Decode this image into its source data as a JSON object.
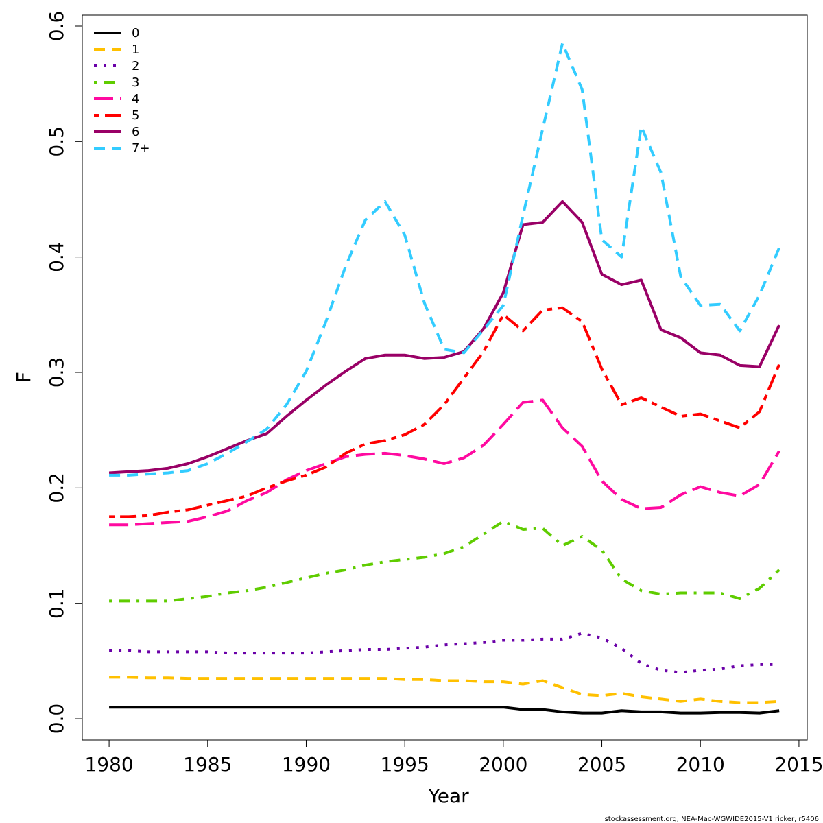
{
  "chart_data": {
    "type": "line",
    "xlabel": "Year",
    "ylabel": "F",
    "caption": "stockassessment.org, NEA-Mac-WGWIDE2015-V1 ricker, r5406",
    "x": [
      1980,
      1981,
      1982,
      1983,
      1984,
      1985,
      1986,
      1987,
      1988,
      1989,
      1990,
      1991,
      1992,
      1993,
      1994,
      1995,
      1996,
      1997,
      1998,
      1999,
      2000,
      2001,
      2002,
      2003,
      2004,
      2005,
      2006,
      2007,
      2008,
      2009,
      2010,
      2011,
      2012,
      2013,
      2014
    ],
    "xlim": [
      1978.64,
      2015.42
    ],
    "xticks": [
      1980,
      1985,
      1990,
      1995,
      2000,
      2005,
      2010,
      2015
    ],
    "ylim": [
      -0.0184,
      0.6095
    ],
    "yticks": [
      {
        "value": 0,
        "label": "0.0"
      },
      0.1,
      0.2,
      0.3,
      0.4,
      0.5,
      0.6
    ],
    "grid": false,
    "legend": "top-left",
    "series": [
      {
        "name": "0",
        "color": "#000000",
        "dash": "solid",
        "values": [
          0.01,
          0.01,
          0.01,
          0.01,
          0.01,
          0.01,
          0.01,
          0.01,
          0.01,
          0.01,
          0.01,
          0.01,
          0.01,
          0.01,
          0.01,
          0.01,
          0.01,
          0.01,
          0.01,
          0.01,
          0.01,
          0.008,
          0.008,
          0.006,
          0.005,
          0.005,
          0.007,
          0.006,
          0.006,
          0.005,
          0.005,
          0.0055,
          0.0055,
          0.005,
          0.007
        ]
      },
      {
        "name": "1",
        "color": "#ffc000",
        "dash": "dashed",
        "values": [
          0.036,
          0.036,
          0.0355,
          0.0355,
          0.035,
          0.035,
          0.035,
          0.035,
          0.035,
          0.035,
          0.035,
          0.035,
          0.035,
          0.035,
          0.035,
          0.034,
          0.034,
          0.033,
          0.033,
          0.032,
          0.032,
          0.03,
          0.033,
          0.027,
          0.021,
          0.02,
          0.022,
          0.019,
          0.017,
          0.015,
          0.017,
          0.015,
          0.014,
          0.014,
          0.015
        ]
      },
      {
        "name": "2",
        "color": "#6a00a8",
        "dash": "dotted",
        "values": [
          0.059,
          0.059,
          0.058,
          0.058,
          0.058,
          0.058,
          0.057,
          0.057,
          0.057,
          0.057,
          0.057,
          0.058,
          0.059,
          0.06,
          0.06,
          0.061,
          0.062,
          0.064,
          0.065,
          0.066,
          0.068,
          0.068,
          0.069,
          0.069,
          0.074,
          0.07,
          0.061,
          0.048,
          0.042,
          0.04,
          0.042,
          0.043,
          0.046,
          0.047,
          0.047
        ]
      },
      {
        "name": "3",
        "color": "#5fcc00",
        "dash": "dotdash",
        "values": [
          0.102,
          0.102,
          0.102,
          0.102,
          0.104,
          0.106,
          0.109,
          0.111,
          0.114,
          0.118,
          0.122,
          0.126,
          0.129,
          0.133,
          0.136,
          0.138,
          0.14,
          0.143,
          0.149,
          0.16,
          0.171,
          0.164,
          0.165,
          0.15,
          0.158,
          0.146,
          0.121,
          0.111,
          0.108,
          0.109,
          0.109,
          0.109,
          0.104,
          0.113,
          0.129
        ]
      },
      {
        "name": "4",
        "color": "#ff0aa0",
        "dash": "longdash",
        "values": [
          0.168,
          0.168,
          0.169,
          0.17,
          0.171,
          0.175,
          0.18,
          0.189,
          0.196,
          0.207,
          0.215,
          0.221,
          0.227,
          0.229,
          0.23,
          0.228,
          0.225,
          0.221,
          0.226,
          0.237,
          0.255,
          0.274,
          0.276,
          0.252,
          0.236,
          0.206,
          0.19,
          0.182,
          0.183,
          0.194,
          0.201,
          0.196,
          0.193,
          0.203,
          0.232
        ]
      },
      {
        "name": "5",
        "color": "#ff0000",
        "dash": "twodash",
        "values": [
          0.175,
          0.175,
          0.176,
          0.179,
          0.181,
          0.185,
          0.189,
          0.193,
          0.2,
          0.206,
          0.211,
          0.218,
          0.23,
          0.238,
          0.241,
          0.246,
          0.255,
          0.272,
          0.295,
          0.318,
          0.35,
          0.336,
          0.354,
          0.356,
          0.344,
          0.303,
          0.272,
          0.278,
          0.27,
          0.262,
          0.264,
          0.258,
          0.252,
          0.266,
          0.307
        ]
      },
      {
        "name": "6",
        "color": "#990066",
        "dash": "solid",
        "values": [
          0.213,
          0.214,
          0.215,
          0.217,
          0.221,
          0.227,
          0.234,
          0.241,
          0.247,
          0.262,
          0.276,
          0.289,
          0.301,
          0.312,
          0.315,
          0.315,
          0.312,
          0.313,
          0.318,
          0.338,
          0.369,
          0.428,
          0.43,
          0.448,
          0.43,
          0.385,
          0.376,
          0.38,
          0.337,
          0.33,
          0.317,
          0.315,
          0.306,
          0.305,
          0.341
        ]
      },
      {
        "name": "7+",
        "color": "#33ccff",
        "dash": "dashed",
        "values": [
          0.211,
          0.211,
          0.212,
          0.213,
          0.215,
          0.221,
          0.23,
          0.24,
          0.251,
          0.272,
          0.301,
          0.344,
          0.392,
          0.432,
          0.448,
          0.419,
          0.36,
          0.32,
          0.317,
          0.337,
          0.358,
          0.436,
          0.511,
          0.585,
          0.545,
          0.415,
          0.4,
          0.513,
          0.473,
          0.383,
          0.358,
          0.359,
          0.336,
          0.367,
          0.408
        ]
      }
    ]
  }
}
